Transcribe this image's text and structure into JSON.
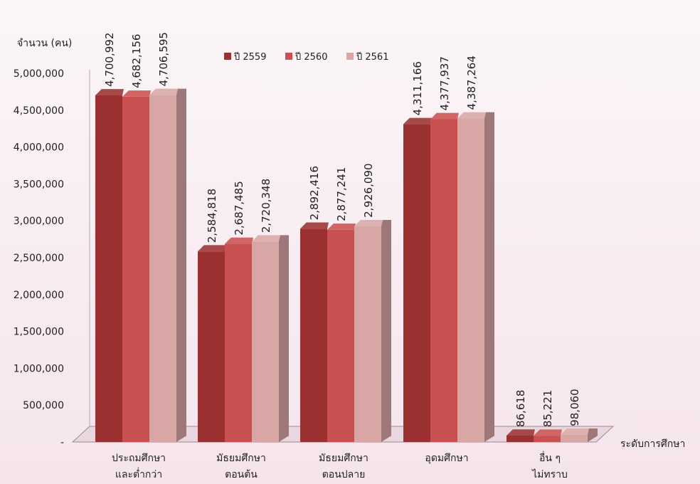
{
  "chart_data": {
    "type": "bar",
    "ylabel": "จำนวน (คน)",
    "xlabel": "ระดับการศึกษา",
    "categories": [
      [
        "ประถมศึกษา",
        "และต่ำกว่า"
      ],
      [
        "มัธยมศึกษา",
        "ตอนต้น"
      ],
      [
        "มัธยมศึกษา",
        "ตอนปลาย"
      ],
      [
        "อุดมศึกษา"
      ],
      [
        "อื่น ๆ",
        "ไม่ทราบ"
      ]
    ],
    "series": [
      {
        "name": "ปี 2559",
        "color": "#9b3030",
        "values": [
          4700992,
          2584818,
          2892416,
          4311166,
          86618
        ]
      },
      {
        "name": "ปี 2560",
        "color": "#c95050",
        "values": [
          4682156,
          2687485,
          2877241,
          4377937,
          85221
        ]
      },
      {
        "name": "ปี 2561",
        "color": "#d9a6a6",
        "values": [
          4706595,
          2720348,
          2926090,
          4387264,
          98060
        ]
      }
    ],
    "data_labels": [
      [
        "4,700,992",
        "2,584,818",
        "2,892,416",
        "4,311,166",
        "86,618"
      ],
      [
        "4,682,156",
        "2,687,485",
        "2,877,241",
        "4,377,937",
        "85,221"
      ],
      [
        "4,706,595",
        "2,720,348",
        "2,926,090",
        "4,387,264",
        "98,060"
      ]
    ],
    "ylim": [
      0,
      5000000
    ],
    "yticks": [
      0,
      500000,
      1000000,
      1500000,
      2000000,
      2500000,
      3000000,
      3500000,
      4000000,
      4500000,
      5000000
    ],
    "ytick_labels": [
      "-",
      "500,000",
      "1,000,000",
      "1,500,000",
      "2,000,000",
      "2,500,000",
      "3,000,000",
      "3,500,000",
      "4,000,000",
      "4,500,000",
      "5,000,000"
    ],
    "legend_position": "top-center",
    "grid": false
  }
}
